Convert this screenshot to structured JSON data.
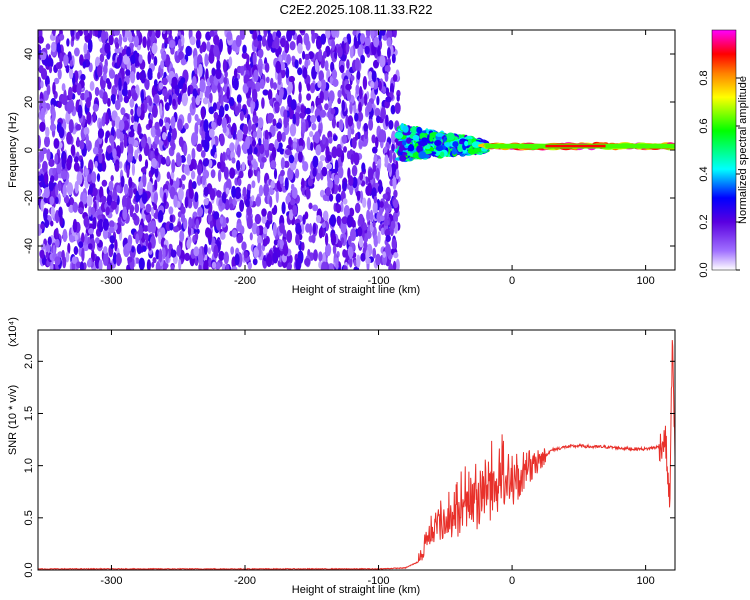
{
  "figure": {
    "title": "C2E2.2025.108.11.33.R22"
  },
  "chart_data": [
    {
      "type": "heatmap",
      "title": "C2E2.2025.108.11.33.R22",
      "xlabel": "Height of straight line (km)",
      "ylabel": "Frequency (Hz)",
      "xlim": [
        -355,
        122
      ],
      "ylim": [
        -50,
        50
      ],
      "xticks": [
        -300,
        -200,
        -100,
        0,
        100
      ],
      "yticks": [
        -40,
        -20,
        0,
        20,
        40
      ],
      "colorbar": {
        "label": "Normalized spectral amplitude",
        "range": [
          0,
          1
        ],
        "ticks": [
          0.0,
          0.2,
          0.4,
          0.6,
          0.8
        ],
        "colormap": [
          "#ffffff",
          "#a070ff",
          "#5a00e0",
          "#0000ff",
          "#00ffff",
          "#00ff00",
          "#ffff00",
          "#ff8000",
          "#ff0000",
          "#ff00ff"
        ]
      },
      "regions": [
        {
          "x_range": [
            -355,
            -85
          ],
          "f_range": [
            -50,
            50
          ],
          "amplitude": [
            0.05,
            0.25
          ],
          "pattern": "broadband noise"
        },
        {
          "x_range": [
            -85,
            -20
          ],
          "f_range": [
            -5,
            10
          ],
          "amplitude": [
            0.2,
            0.6
          ],
          "pattern": "tapering signal"
        },
        {
          "x_range": [
            -20,
            122
          ],
          "f_range": [
            0,
            3
          ],
          "amplitude": [
            0.6,
            1.0
          ],
          "pattern": "narrow band near 1 Hz"
        }
      ]
    },
    {
      "type": "line",
      "xlabel": "Height of straight line (km)",
      "ylabel": "SNR (10 * v/v)",
      "yscale_label": "(x10⁴)",
      "xlim": [
        -355,
        122
      ],
      "ylim": [
        0,
        2.3
      ],
      "xticks": [
        -300,
        -200,
        -100,
        0,
        100
      ],
      "yticks": [
        0.0,
        0.5,
        1.0,
        1.5,
        2.0
      ],
      "color": "#e8302a",
      "series": [
        {
          "x": [
            -355,
            -300,
            -200,
            -100,
            -80,
            -70,
            -60,
            -50,
            -40,
            -30,
            -20,
            -10,
            0,
            10,
            20,
            30,
            40,
            50,
            60,
            70,
            80,
            90,
            100,
            110,
            115,
            118,
            120,
            122
          ],
          "y": [
            0.01,
            0.01,
            0.01,
            0.01,
            0.02,
            0.08,
            0.35,
            0.45,
            0.5,
            0.6,
            0.7,
            0.8,
            0.8,
            0.9,
            1.05,
            1.15,
            1.18,
            1.19,
            1.18,
            1.18,
            1.17,
            1.16,
            1.16,
            1.18,
            1.25,
            0.6,
            2.2,
            1.05
          ]
        }
      ]
    }
  ]
}
